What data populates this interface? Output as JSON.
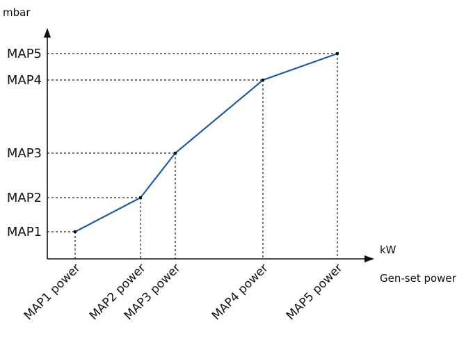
{
  "chart_data": {
    "type": "line",
    "y_unit": "mbar",
    "x_unit": "kW",
    "x_title": "Gen-set power",
    "x": [
      1,
      2,
      3,
      4,
      5
    ],
    "x_tick_labels": [
      "MAP1 power",
      "MAP2 power",
      "MAP3 power",
      "MAP4 power",
      "MAP5 power"
    ],
    "y_tick_labels": [
      "MAP1",
      "MAP2",
      "MAP3",
      "MAP4",
      "MAP5"
    ],
    "points": [
      {
        "x_label": "MAP1 power",
        "y_label": "MAP1"
      },
      {
        "x_label": "MAP2 power",
        "y_label": "MAP2"
      },
      {
        "x_label": "MAP3 power",
        "y_label": "MAP3"
      },
      {
        "x_label": "MAP4 power",
        "y_label": "MAP4"
      },
      {
        "x_label": "MAP5 power",
        "y_label": "MAP5"
      }
    ],
    "series_color": "#1f5aa6",
    "grid": false,
    "reference_lines": "dashed"
  }
}
